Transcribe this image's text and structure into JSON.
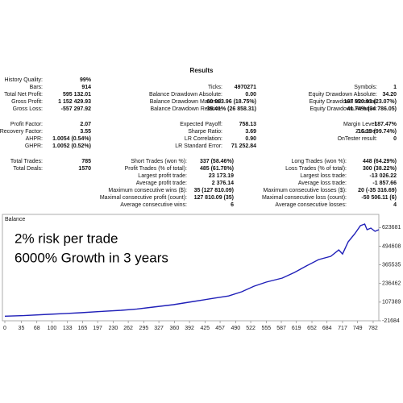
{
  "results": {
    "title": "Results",
    "groups": [
      {
        "columns": [
          [
            {
              "label": "History Quality:",
              "value": "99%"
            },
            {
              "label": "Bars:",
              "value": "914"
            },
            {
              "label": "Total Net Profit:",
              "value": "595 132.01"
            },
            {
              "label": "Gross Profit:",
              "value": "1 152 429.93"
            },
            {
              "label": "Gross Loss:",
              "value": "-557 297.92"
            }
          ],
          [
            {
              "label": "Ticks:",
              "value": "4970271"
            },
            {
              "label": "Balance Drawdown Absolute:",
              "value": "0.00"
            },
            {
              "label": "Balance Drawdown Maximal:",
              "value": "60 993.96 (18.75%)"
            },
            {
              "label": "Balance Drawdown Relative:",
              "value": "35.41% (26 858.31)"
            }
          ],
          [
            {
              "label": "Symbols:",
              "value": "1"
            },
            {
              "label": "Equity Drawdown Absolute:",
              "value": "34.20"
            },
            {
              "label": "Equity Drawdown Maximal:",
              "value": "167 820.93 (23.07%)"
            },
            {
              "label": "Equity Drawdown Relative:",
              "value": "41.74% (34 786.05)"
            }
          ]
        ]
      },
      {
        "columns": [
          [
            {
              "label": "Profit Factor:",
              "value": "2.07"
            },
            {
              "label": "Recovery Factor:",
              "value": "3.55"
            },
            {
              "label": "AHPR:",
              "value": "1.0054 (0.54%)"
            },
            {
              "label": "GHPR:",
              "value": "1.0052 (0.52%)"
            }
          ],
          [
            {
              "label": "Expected Payoff:",
              "value": "758.13"
            },
            {
              "label": "Sharpe Ratio:",
              "value": "3.69"
            },
            {
              "label": "LR Correlation:",
              "value": "0.90"
            },
            {
              "label": "LR Standard Error:",
              "value": "71 252.84"
            }
          ],
          [
            {
              "label": "Margin Level:",
              "value": "187.47%"
            },
            {
              "label": "Z-Score:",
              "value": "-16.35 (99.74%)"
            },
            {
              "label": "OnTester result:",
              "value": "0"
            }
          ]
        ]
      },
      {
        "columns": [
          [
            {
              "label": "Total Trades:",
              "value": "785"
            },
            {
              "label": "Total Deals:",
              "value": "1570"
            }
          ],
          [
            {
              "label": "Short Trades (won %):",
              "value": "337 (58.46%)"
            },
            {
              "label": "Profit Trades (% of total):",
              "value": "485 (61.78%)"
            },
            {
              "label": "Largest profit trade:",
              "value": "23 173.19"
            },
            {
              "label": "Average profit trade:",
              "value": "2 376.14"
            },
            {
              "label": "Maximum consecutive wins ($):",
              "value": "35 (127 810.09)"
            },
            {
              "label": "Maximal consecutive profit (count):",
              "value": "127 810.09 (35)"
            },
            {
              "label": "Average consecutive wins:",
              "value": "6"
            }
          ],
          [
            {
              "label": "Long Trades (won %):",
              "value": "448 (64.29%)"
            },
            {
              "label": "Loss Trades (% of total):",
              "value": "300 (38.22%)"
            },
            {
              "label": "Largest loss trade:",
              "value": "-13 026.22"
            },
            {
              "label": "Average loss trade:",
              "value": "-1 857.66"
            },
            {
              "label": "Maximum consecutive losses ($):",
              "value": "20 (-35 316.69)"
            },
            {
              "label": "Maximal consecutive loss (count):",
              "value": "-50 506.11 (6)"
            },
            {
              "label": "Average consecutive losses:",
              "value": "4"
            }
          ]
        ]
      }
    ]
  },
  "chart_data": {
    "type": "line",
    "title": "Balance",
    "annotations": [
      "2% risk per trade",
      "6000% Growth in 3 years"
    ],
    "color": "#1f1fb8",
    "x": [
      0,
      40,
      92,
      130,
      161,
      200,
      247,
      280,
      315,
      358,
      401,
      443,
      475,
      503,
      529,
      555,
      589,
      615,
      640,
      666,
      692,
      709,
      717,
      729,
      743,
      755,
      764,
      769,
      777,
      786,
      794
    ],
    "values": [
      10000,
      14000,
      23000,
      29000,
      34000,
      42000,
      51000,
      60000,
      73000,
      90000,
      112000,
      134000,
      150000,
      179000,
      218000,
      246000,
      274000,
      313000,
      358000,
      402000,
      425000,
      469000,
      441000,
      525000,
      581000,
      637000,
      648000,
      609000,
      620000,
      598000,
      609000
    ],
    "xlim": [
      0,
      794
    ],
    "ylim": [
      -21684,
      715000
    ],
    "xticks": [
      0,
      35,
      68,
      100,
      133,
      165,
      197,
      230,
      262,
      295,
      327,
      360,
      392,
      425,
      457,
      490,
      522,
      555,
      587,
      619,
      652,
      684,
      717,
      749,
      782
    ],
    "yticks": [
      -21684,
      107389,
      236462,
      365535,
      494608,
      623681
    ]
  }
}
